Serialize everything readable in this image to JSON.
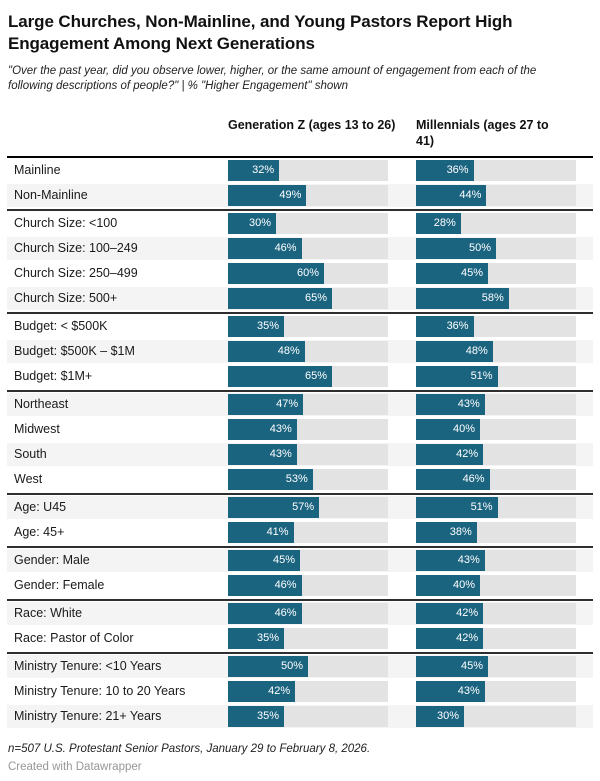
{
  "header": {
    "title": "Large Churches, Non-Mainline, and Young Pastors Report High Engagement Among Next Generations",
    "subtitle": "\"Over the past year, did you observe lower, higher, or the same amount of engagement from each of the following descriptions of people?\" | % \"Higher Engagement\" shown"
  },
  "columns": {
    "gen_z": "Generation Z (ages 13 to 26)",
    "millennials": "Millennials (ages 27 to 41)"
  },
  "colors": {
    "bar": "#1b6480",
    "track": "#e3e3e3",
    "stripe": "#f4f4f4",
    "separator": "#2e2e2e"
  },
  "chart_data": {
    "type": "bar",
    "title": "Large Churches, Non-Mainline, and Young Pastors Report High Engagement Among Next Generations",
    "subtitle": "\"Over the past year, did you observe lower, higher, or the same amount of engagement from each of the following descriptions of people?\" | % \"Higher Engagement\" shown",
    "unit": "%",
    "xlim": [
      0,
      100
    ],
    "orientation": "horizontal",
    "legend_position": "column-headers",
    "grid": false,
    "categories": [
      "Mainline",
      "Non-Mainline",
      "Church Size: <100",
      "Church Size: 100–249",
      "Church Size: 250–499",
      "Church Size: 500+",
      "Budget: < $500K",
      "Budget: $500K – $1M",
      "Budget: $1M+",
      "Northeast",
      "Midwest",
      "South",
      "West",
      "Age: U45",
      "Age: 45+",
      "Gender: Male",
      "Gender: Female",
      "Race: White",
      "Race: Pastor of Color",
      "Ministry Tenure: <10 Years",
      "Ministry Tenure: 10 to 20 Years",
      "Ministry Tenure: 21+ Years"
    ],
    "series": [
      {
        "name": "Generation Z (ages 13 to 26)",
        "values": [
          32,
          49,
          30,
          46,
          60,
          65,
          35,
          48,
          65,
          47,
          43,
          43,
          53,
          57,
          41,
          45,
          46,
          46,
          35,
          50,
          42,
          35
        ]
      },
      {
        "name": "Millennials (ages 27 to 41)",
        "values": [
          36,
          44,
          28,
          50,
          45,
          58,
          36,
          48,
          51,
          43,
          40,
          42,
          46,
          51,
          38,
          43,
          40,
          42,
          42,
          45,
          43,
          30
        ]
      }
    ],
    "groups": [
      {
        "rows": [
          {
            "label": "Mainline",
            "gen_z": 32,
            "millennials": 36
          },
          {
            "label": "Non-Mainline",
            "gen_z": 49,
            "millennials": 44
          }
        ]
      },
      {
        "rows": [
          {
            "label": "Church Size: <100",
            "gen_z": 30,
            "millennials": 28
          },
          {
            "label": "Church Size: 100–249",
            "gen_z": 46,
            "millennials": 50
          },
          {
            "label": "Church Size: 250–499",
            "gen_z": 60,
            "millennials": 45
          },
          {
            "label": "Church Size: 500+",
            "gen_z": 65,
            "millennials": 58
          }
        ]
      },
      {
        "rows": [
          {
            "label": "Budget: < $500K",
            "gen_z": 35,
            "millennials": 36
          },
          {
            "label": "Budget: $500K – $1M",
            "gen_z": 48,
            "millennials": 48
          },
          {
            "label": "Budget: $1M+",
            "gen_z": 65,
            "millennials": 51
          }
        ]
      },
      {
        "rows": [
          {
            "label": "Northeast",
            "gen_z": 47,
            "millennials": 43
          },
          {
            "label": "Midwest",
            "gen_z": 43,
            "millennials": 40
          },
          {
            "label": "South",
            "gen_z": 43,
            "millennials": 42
          },
          {
            "label": "West",
            "gen_z": 53,
            "millennials": 46
          }
        ]
      },
      {
        "rows": [
          {
            "label": "Age: U45",
            "gen_z": 57,
            "millennials": 51
          },
          {
            "label": "Age: 45+",
            "gen_z": 41,
            "millennials": 38
          }
        ]
      },
      {
        "rows": [
          {
            "label": "Gender: Male",
            "gen_z": 45,
            "millennials": 43
          },
          {
            "label": "Gender: Female",
            "gen_z": 46,
            "millennials": 40
          }
        ]
      },
      {
        "rows": [
          {
            "label": "Race: White",
            "gen_z": 46,
            "millennials": 42
          },
          {
            "label": "Race: Pastor of Color",
            "gen_z": 35,
            "millennials": 42
          }
        ]
      },
      {
        "rows": [
          {
            "label": "Ministry Tenure: <10 Years",
            "gen_z": 50,
            "millennials": 45
          },
          {
            "label": "Ministry Tenure: 10 to 20 Years",
            "gen_z": 42,
            "millennials": 43
          },
          {
            "label": "Ministry Tenure: 21+ Years",
            "gen_z": 35,
            "millennials": 30
          }
        ]
      }
    ]
  },
  "footer": {
    "note": "n=507 U.S. Protestant Senior Pastors, January 29 to February 8, 2026.",
    "credit": "Created with Datawrapper"
  }
}
